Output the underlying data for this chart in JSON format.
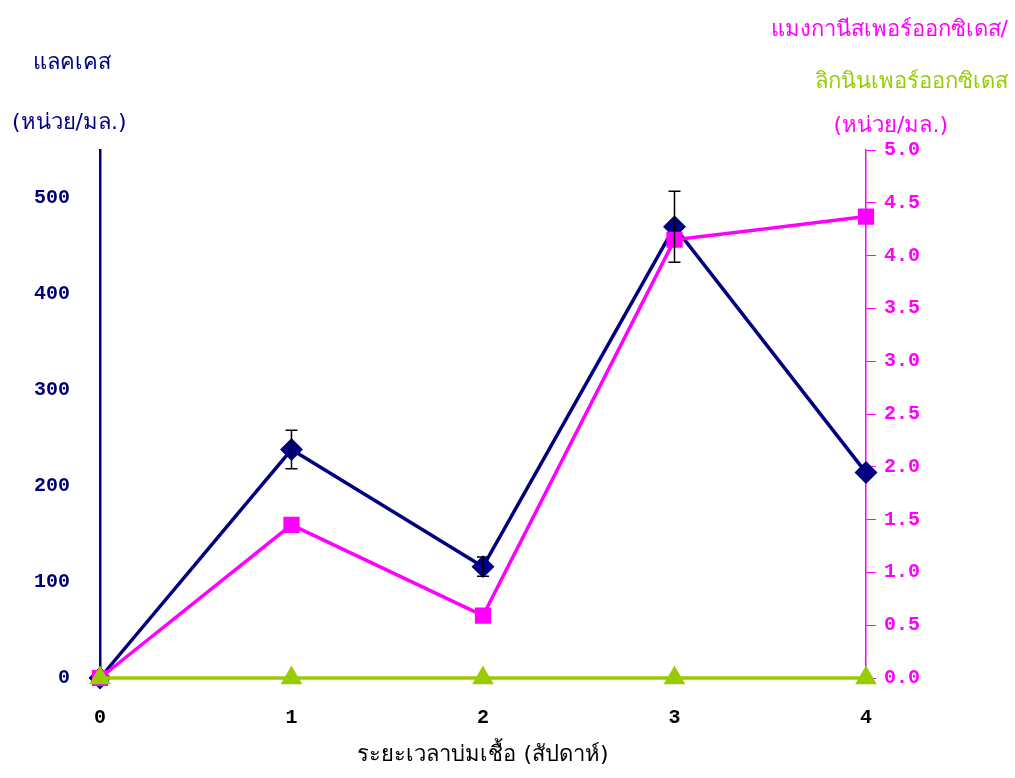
{
  "chart_data": {
    "type": "line",
    "xlabel": "ระยะเวลาบ่มเชื้อ (สัปดาห์)",
    "ylabel": "แลคเคส\n(หน่วย/มล.)",
    "y2label": "แมงกานีสเพอร์ออกซิเดส/\nลิกนินเพอร์ออกซิเดส\n(หน่วย/มล.)",
    "x": [
      0,
      1,
      2,
      3,
      4
    ],
    "xlim": [
      0,
      4
    ],
    "xticks": [
      0,
      1,
      2,
      3,
      4
    ],
    "ylim": [
      0,
      550
    ],
    "yticks": [
      0,
      100,
      200,
      300,
      400,
      500
    ],
    "y2lim": [
      0,
      5.0
    ],
    "y2ticks": [
      {
        "value": 0,
        "label": "0.0"
      },
      {
        "value": 0.5,
        "label": "0.5"
      },
      {
        "value": 1,
        "label": "1.0"
      },
      {
        "value": 1.5,
        "label": "1.5"
      },
      {
        "value": 2,
        "label": "2.0"
      },
      {
        "value": 2.5,
        "label": "2.5"
      },
      {
        "value": 3,
        "label": "3.0"
      },
      {
        "value": 3.5,
        "label": "3.5"
      },
      {
        "value": 4,
        "label": "4.0"
      },
      {
        "value": 4.5,
        "label": "4.5"
      },
      {
        "value": 5,
        "label": "5.0"
      }
    ],
    "grid": false,
    "legend": false,
    "line_style": "solid",
    "series": [
      {
        "color": "#000080",
        "marker": "diamond",
        "values": [
          0,
          238,
          116,
          470,
          214
        ],
        "errors": [
          null,
          20,
          10,
          37,
          null
        ]
      },
      {
        "color": "#ff00ff",
        "marker": "square",
        "axis": "y2",
        "values": [
          0,
          1.45,
          0.59,
          4.15,
          4.37
        ]
      },
      {
        "color": "#99cc00",
        "marker": "triangle",
        "axis": "y2",
        "values": [
          0,
          0,
          0,
          0,
          0
        ]
      }
    ]
  }
}
